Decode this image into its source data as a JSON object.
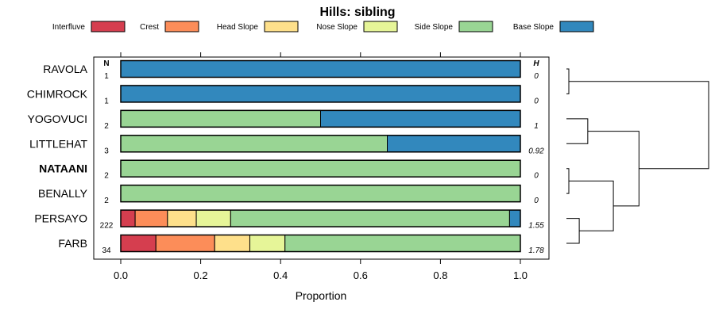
{
  "chart_data": {
    "type": "bar",
    "orientation": "horizontal",
    "stacked": true,
    "title": "Hills: sibling",
    "xlabel": "Proportion",
    "ylabel": "",
    "xlim": [
      0,
      1
    ],
    "x_ticks": [
      "0.0",
      "0.2",
      "0.4",
      "0.6",
      "0.8",
      "1.0"
    ],
    "n_header": "N",
    "h_header": "H",
    "legend": [
      {
        "name": "Interfluve",
        "color": "#d53e4f"
      },
      {
        "name": "Crest",
        "color": "#fc8d59"
      },
      {
        "name": "Head Slope",
        "color": "#fee08b"
      },
      {
        "name": "Nose Slope",
        "color": "#e6f598"
      },
      {
        "name": "Side Slope",
        "color": "#99d594"
      },
      {
        "name": "Base Slope",
        "color": "#3288bd"
      }
    ],
    "rows": [
      {
        "label": "RAVOLA",
        "bold": false,
        "n": "1",
        "h": "0",
        "values": [
          0,
          0,
          0,
          0,
          0,
          1.0
        ]
      },
      {
        "label": "CHIMROCK",
        "bold": false,
        "n": "1",
        "h": "0",
        "values": [
          0,
          0,
          0,
          0,
          0,
          1.0
        ]
      },
      {
        "label": "YOGOVUCI",
        "bold": false,
        "n": "2",
        "h": "1",
        "values": [
          0,
          0,
          0,
          0,
          0.5,
          0.5
        ]
      },
      {
        "label": "LITTLEHAT",
        "bold": false,
        "n": "3",
        "h": "0.92",
        "values": [
          0,
          0,
          0,
          0,
          0.667,
          0.333
        ]
      },
      {
        "label": "NATAANI",
        "bold": true,
        "n": "2",
        "h": "0",
        "values": [
          0,
          0,
          0,
          0,
          1.0,
          0
        ]
      },
      {
        "label": "BENALLY",
        "bold": false,
        "n": "2",
        "h": "0",
        "values": [
          0,
          0,
          0,
          0,
          1.0,
          0
        ]
      },
      {
        "label": "PERSAYO",
        "bold": false,
        "n": "222",
        "h": "1.55",
        "values": [
          0.036,
          0.081,
          0.072,
          0.086,
          0.698,
          0.027
        ]
      },
      {
        "label": "FARB",
        "bold": false,
        "n": "34",
        "h": "1.78",
        "values": [
          0.088,
          0.147,
          0.088,
          0.088,
          0.589,
          0
        ]
      }
    ],
    "dendrogram": {
      "leaf_order": [
        "RAVOLA",
        "CHIMROCK",
        "YOGOVUCI",
        "LITTLEHAT",
        "NATAANI",
        "BENALLY",
        "PERSAYO",
        "FARB"
      ],
      "merges": [
        {
          "a": "leaf:0",
          "b": "leaf:1",
          "height": 0.0
        },
        {
          "a": "leaf:4",
          "b": "leaf:5",
          "height": 0.0
        },
        {
          "a": "leaf:2",
          "b": "leaf:3",
          "height": 0.15
        },
        {
          "a": "leaf:6",
          "b": "leaf:7",
          "height": 0.09
        },
        {
          "a": "node:1",
          "b": "node:3",
          "height": 0.33
        },
        {
          "a": "node:2",
          "b": "node:4",
          "height": 0.51
        },
        {
          "a": "node:0",
          "b": "node:5",
          "height": 1.0
        }
      ]
    }
  }
}
